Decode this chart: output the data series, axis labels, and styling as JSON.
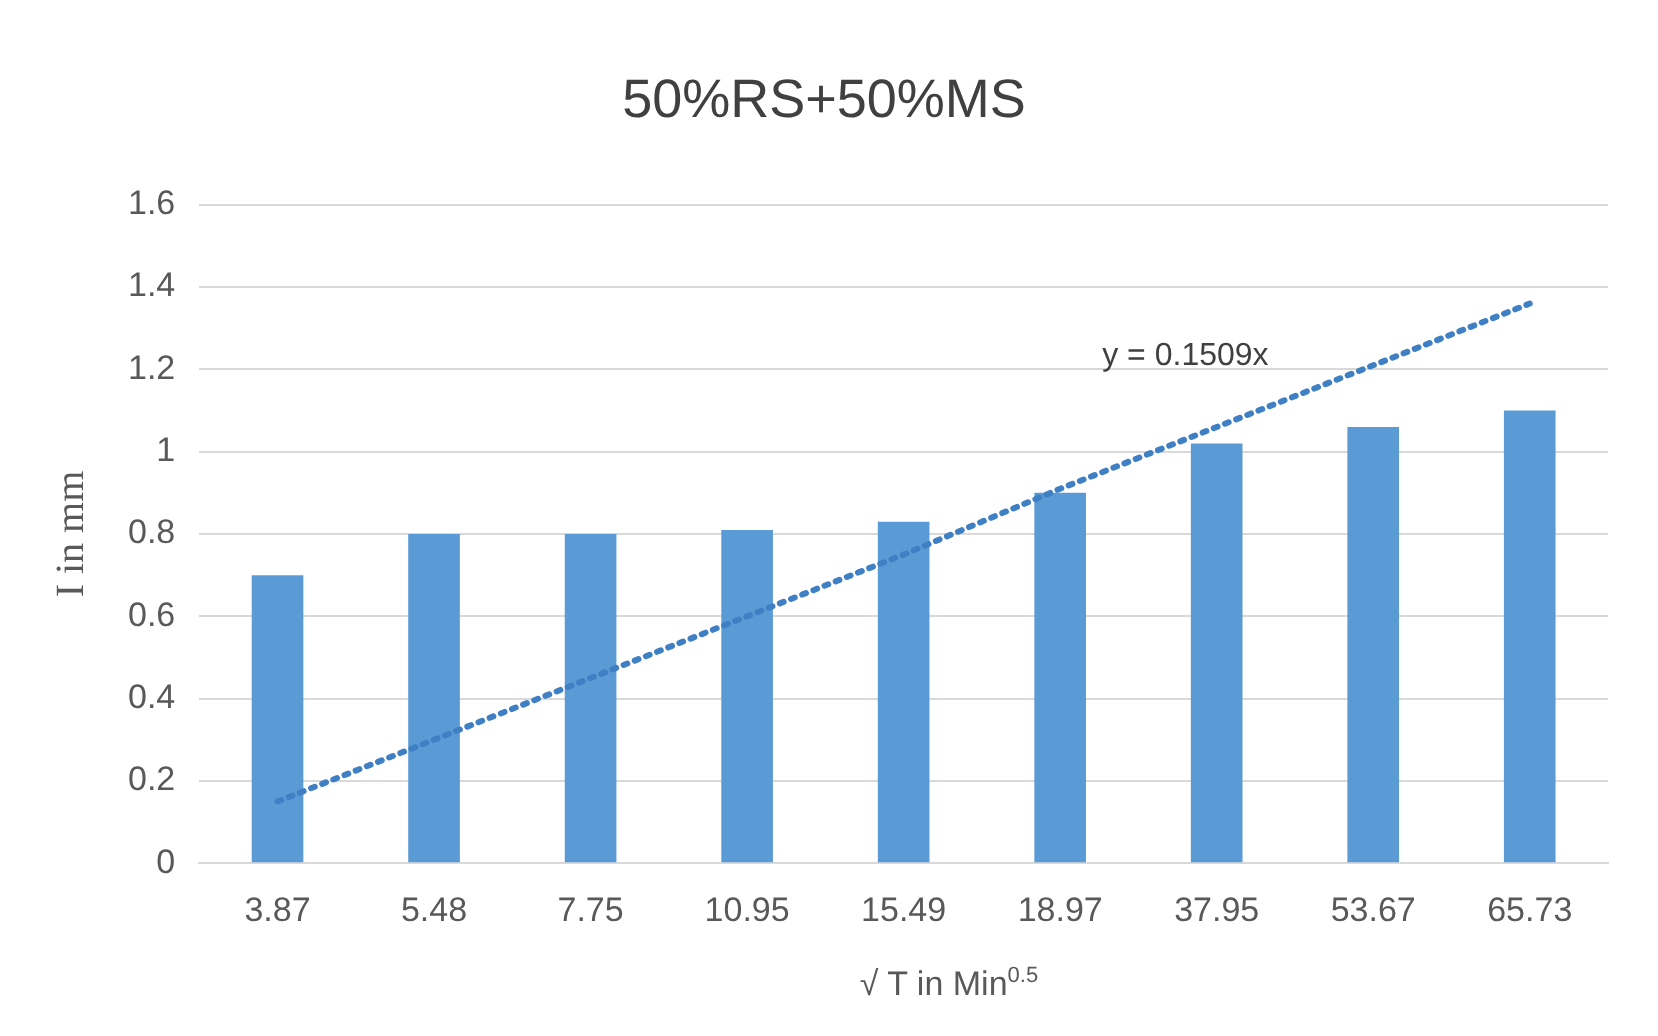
{
  "chart_data": {
    "type": "bar",
    "title": "50%RS+50%MS",
    "xlabel": "√ T in Min$^{0.5}$",
    "ylabel": "I in mm",
    "categories": [
      "3.87",
      "5.48",
      "7.75",
      "10.95",
      "15.49",
      "18.97",
      "37.95",
      "53.67",
      "65.73"
    ],
    "series": [
      {
        "color": "#5b9bd5",
        "values": [
          0.7,
          0.8,
          0.8,
          0.81,
          0.83,
          0.9,
          1.02,
          1.06,
          1.1
        ]
      },
      {
        "type": "line",
        "color": "#3f7fc4",
        "line_style": "dotted",
        "marker": "none",
        "values": [
          0.15,
          0.3,
          0.45,
          0.6,
          0.75,
          0.91,
          1.06,
          1.21,
          1.36
        ]
      }
    ],
    "ylim": [
      0,
      1.6
    ],
    "yticks": [
      0,
      0.2,
      0.4,
      0.6,
      0.8,
      1,
      1.2,
      1.4,
      1.6
    ],
    "grid": "y",
    "legend": false,
    "annotations": [
      "y = 0.1509x"
    ]
  }
}
